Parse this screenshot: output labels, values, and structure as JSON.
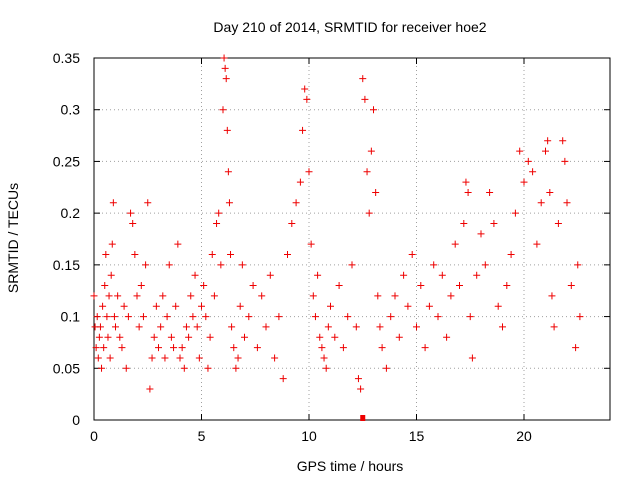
{
  "chart_data": {
    "type": "scatter",
    "title": "Day 210 of 2014, SRMTID for receiver hoe2",
    "xlabel": "GPS time / hours",
    "ylabel": "SRMTID / TECUs",
    "xlim": [
      0,
      24
    ],
    "ylim": [
      0,
      0.35
    ],
    "grid": true,
    "marker": "+",
    "color": "#ee0000",
    "x_ticks": [
      0,
      5,
      10,
      15,
      20
    ],
    "x_tick_labels": [
      "0",
      "5",
      "10",
      "15",
      "20"
    ],
    "y_ticks": [
      0,
      0.05,
      0.1,
      0.15,
      0.2,
      0.25,
      0.3,
      0.35
    ],
    "y_tick_labels": [
      "0",
      "0.05",
      "0.1",
      "0.15",
      "0.2",
      "0.25",
      "0.3",
      "0.35"
    ],
    "series": [
      {
        "name": "SRMTID",
        "points": [
          [
            0.0,
            0.12
          ],
          [
            0.05,
            0.09
          ],
          [
            0.1,
            0.07
          ],
          [
            0.15,
            0.1
          ],
          [
            0.2,
            0.06
          ],
          [
            0.25,
            0.08
          ],
          [
            0.3,
            0.09
          ],
          [
            0.35,
            0.05
          ],
          [
            0.4,
            0.11
          ],
          [
            0.45,
            0.07
          ],
          [
            0.5,
            0.13
          ],
          [
            0.55,
            0.16
          ],
          [
            0.6,
            0.1
          ],
          [
            0.65,
            0.08
          ],
          [
            0.7,
            0.12
          ],
          [
            0.75,
            0.06
          ],
          [
            0.8,
            0.14
          ],
          [
            0.85,
            0.17
          ],
          [
            0.9,
            0.21
          ],
          [
            0.95,
            0.1
          ],
          [
            1.0,
            0.09
          ],
          [
            1.1,
            0.12
          ],
          [
            1.2,
            0.08
          ],
          [
            1.3,
            0.07
          ],
          [
            1.4,
            0.11
          ],
          [
            1.5,
            0.05
          ],
          [
            1.6,
            0.1
          ],
          [
            1.7,
            0.2
          ],
          [
            1.8,
            0.19
          ],
          [
            1.9,
            0.16
          ],
          [
            2.0,
            0.12
          ],
          [
            2.1,
            0.09
          ],
          [
            2.2,
            0.13
          ],
          [
            2.3,
            0.1
          ],
          [
            2.4,
            0.15
          ],
          [
            2.5,
            0.21
          ],
          [
            2.6,
            0.03
          ],
          [
            2.7,
            0.06
          ],
          [
            2.8,
            0.08
          ],
          [
            2.9,
            0.11
          ],
          [
            3.0,
            0.07
          ],
          [
            3.1,
            0.09
          ],
          [
            3.2,
            0.12
          ],
          [
            3.3,
            0.06
          ],
          [
            3.4,
            0.1
          ],
          [
            3.5,
            0.15
          ],
          [
            3.6,
            0.08
          ],
          [
            3.7,
            0.07
          ],
          [
            3.8,
            0.11
          ],
          [
            3.9,
            0.17
          ],
          [
            4.0,
            0.06
          ],
          [
            4.1,
            0.07
          ],
          [
            4.2,
            0.05
          ],
          [
            4.3,
            0.09
          ],
          [
            4.4,
            0.08
          ],
          [
            4.5,
            0.12
          ],
          [
            4.6,
            0.1
          ],
          [
            4.7,
            0.14
          ],
          [
            4.8,
            0.09
          ],
          [
            4.9,
            0.06
          ],
          [
            5.0,
            0.11
          ],
          [
            5.1,
            0.13
          ],
          [
            5.2,
            0.1
          ],
          [
            5.3,
            0.05
          ],
          [
            5.4,
            0.08
          ],
          [
            5.5,
            0.16
          ],
          [
            5.6,
            0.12
          ],
          [
            5.7,
            0.19
          ],
          [
            5.8,
            0.2
          ],
          [
            5.9,
            0.15
          ],
          [
            6.0,
            0.3
          ],
          [
            6.05,
            0.35
          ],
          [
            6.1,
            0.34
          ],
          [
            6.15,
            0.33
          ],
          [
            6.2,
            0.28
          ],
          [
            6.25,
            0.24
          ],
          [
            6.3,
            0.21
          ],
          [
            6.35,
            0.16
          ],
          [
            6.4,
            0.09
          ],
          [
            6.5,
            0.07
          ],
          [
            6.6,
            0.05
          ],
          [
            6.7,
            0.06
          ],
          [
            6.8,
            0.11
          ],
          [
            6.9,
            0.15
          ],
          [
            7.0,
            0.08
          ],
          [
            7.2,
            0.1
          ],
          [
            7.4,
            0.13
          ],
          [
            7.6,
            0.07
          ],
          [
            7.8,
            0.12
          ],
          [
            8.0,
            0.09
          ],
          [
            8.2,
            0.14
          ],
          [
            8.4,
            0.06
          ],
          [
            8.6,
            0.1
          ],
          [
            8.8,
            0.04
          ],
          [
            9.0,
            0.16
          ],
          [
            9.2,
            0.19
          ],
          [
            9.4,
            0.21
          ],
          [
            9.6,
            0.23
          ],
          [
            9.7,
            0.28
          ],
          [
            9.8,
            0.32
          ],
          [
            9.9,
            0.31
          ],
          [
            10.0,
            0.24
          ],
          [
            10.1,
            0.17
          ],
          [
            10.2,
            0.12
          ],
          [
            10.3,
            0.1
          ],
          [
            10.4,
            0.14
          ],
          [
            10.5,
            0.08
          ],
          [
            10.6,
            0.07
          ],
          [
            10.7,
            0.06
          ],
          [
            10.8,
            0.05
          ],
          [
            10.9,
            0.09
          ],
          [
            11.0,
            0.11
          ],
          [
            11.2,
            0.08
          ],
          [
            11.4,
            0.13
          ],
          [
            11.6,
            0.07
          ],
          [
            11.8,
            0.1
          ],
          [
            12.0,
            0.15
          ],
          [
            12.2,
            0.09
          ],
          [
            12.3,
            0.04
          ],
          [
            12.4,
            0.03
          ],
          [
            12.5,
            0.33
          ],
          [
            12.6,
            0.31
          ],
          [
            12.7,
            0.24
          ],
          [
            12.8,
            0.2
          ],
          [
            12.9,
            0.26
          ],
          [
            13.0,
            0.3
          ],
          [
            13.1,
            0.22
          ],
          [
            13.2,
            0.12
          ],
          [
            13.3,
            0.09
          ],
          [
            13.4,
            0.07
          ],
          [
            13.6,
            0.05
          ],
          [
            13.8,
            0.1
          ],
          [
            14.0,
            0.12
          ],
          [
            14.2,
            0.08
          ],
          [
            14.4,
            0.14
          ],
          [
            14.6,
            0.11
          ],
          [
            14.8,
            0.16
          ],
          [
            15.0,
            0.09
          ],
          [
            15.2,
            0.13
          ],
          [
            15.4,
            0.07
          ],
          [
            15.6,
            0.11
          ],
          [
            15.8,
            0.15
          ],
          [
            16.0,
            0.1
          ],
          [
            16.2,
            0.14
          ],
          [
            16.4,
            0.08
          ],
          [
            16.6,
            0.12
          ],
          [
            16.8,
            0.17
          ],
          [
            17.0,
            0.13
          ],
          [
            17.2,
            0.19
          ],
          [
            17.3,
            0.23
          ],
          [
            17.4,
            0.22
          ],
          [
            17.5,
            0.1
          ],
          [
            17.6,
            0.06
          ],
          [
            17.8,
            0.14
          ],
          [
            18.0,
            0.18
          ],
          [
            18.2,
            0.15
          ],
          [
            18.4,
            0.22
          ],
          [
            18.6,
            0.19
          ],
          [
            18.8,
            0.11
          ],
          [
            19.0,
            0.09
          ],
          [
            19.2,
            0.13
          ],
          [
            19.4,
            0.16
          ],
          [
            19.6,
            0.2
          ],
          [
            19.8,
            0.26
          ],
          [
            20.0,
            0.23
          ],
          [
            20.2,
            0.25
          ],
          [
            20.4,
            0.24
          ],
          [
            20.6,
            0.17
          ],
          [
            20.8,
            0.21
          ],
          [
            21.0,
            0.26
          ],
          [
            21.1,
            0.27
          ],
          [
            21.2,
            0.22
          ],
          [
            21.3,
            0.12
          ],
          [
            21.4,
            0.09
          ],
          [
            21.6,
            0.19
          ],
          [
            21.8,
            0.27
          ],
          [
            21.9,
            0.25
          ],
          [
            22.0,
            0.21
          ],
          [
            22.2,
            0.13
          ],
          [
            22.4,
            0.07
          ],
          [
            22.5,
            0.15
          ],
          [
            22.6,
            0.1
          ]
        ]
      }
    ],
    "annotations": [
      {
        "type": "gap-marker",
        "x": 12.5,
        "y": 0.0,
        "style": "filled-square"
      }
    ]
  }
}
